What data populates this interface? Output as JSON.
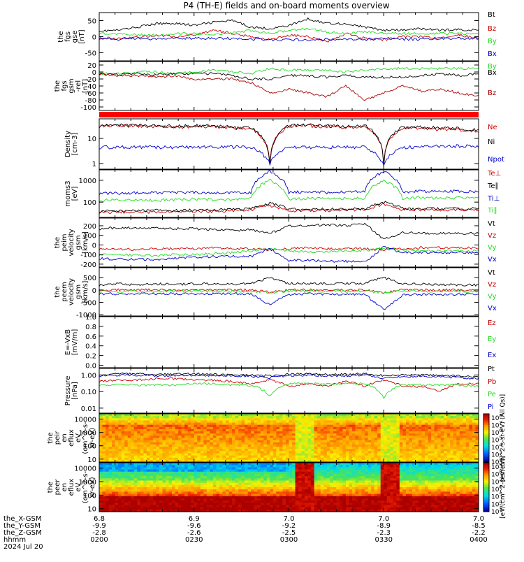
{
  "title": "P4 (TH-E) fields and on-board moments overview",
  "chart_data": [
    {
      "type": "line",
      "ylabel": [
        "the",
        "fgs",
        "gse",
        "[nT]"
      ],
      "y_ticks": [
        "50",
        "0",
        "-50"
      ],
      "ylim": [
        -75,
        75
      ],
      "y_tick_values": [
        50,
        0,
        -50
      ],
      "series": [
        {
          "name": "Bt",
          "color": "#000000",
          "values": [
            18,
            20,
            30,
            40,
            42,
            35,
            45,
            50,
            30,
            25,
            35,
            55,
            42,
            40,
            30,
            20,
            20,
            25,
            20,
            22,
            20
          ]
        },
        {
          "name": "Bz",
          "color": "#cc0000",
          "values": [
            -5,
            -5,
            -2,
            5,
            0,
            5,
            20,
            10,
            0,
            -10,
            5,
            0,
            -15,
            10,
            -5,
            -10,
            0,
            0,
            -5,
            5,
            -5
          ]
        },
        {
          "name": "By",
          "color": "#22dd22",
          "values": [
            10,
            8,
            6,
            5,
            10,
            10,
            5,
            10,
            20,
            10,
            20,
            25,
            15,
            10,
            15,
            10,
            10,
            10,
            10,
            10,
            8
          ]
        },
        {
          "name": "Bx",
          "color": "#0000cc",
          "values": [
            -5,
            -8,
            -5,
            -8,
            -5,
            -5,
            -5,
            -5,
            -8,
            -10,
            -10,
            -10,
            -8,
            -8,
            -10,
            -5,
            -8,
            -8,
            -5,
            -5,
            -5
          ]
        }
      ]
    },
    {
      "type": "line",
      "ylabel": [
        "the",
        "fgs",
        "gsm",
        "-rel",
        "[nT]"
      ],
      "y_ticks": [
        "20",
        "0",
        "-20",
        "-40",
        "-60",
        "-80",
        "-100"
      ],
      "ylim": [
        -110,
        30
      ],
      "y_tick_values": [
        20,
        0,
        -20,
        -40,
        -60,
        -80,
        -100
      ],
      "series": [
        {
          "name": "By",
          "color": "#22dd22",
          "values": [
            -5,
            -5,
            0,
            0,
            -5,
            0,
            5,
            0,
            -5,
            10,
            5,
            5,
            5,
            0,
            5,
            10,
            10,
            10,
            10,
            10,
            10
          ]
        },
        {
          "name": "Bx",
          "color": "#000000",
          "values": [
            -5,
            -8,
            -5,
            -8,
            -5,
            -5,
            -5,
            -10,
            -20,
            -20,
            -10,
            -10,
            -15,
            -10,
            -15,
            -15,
            -15,
            -10,
            -5,
            -10,
            -5
          ]
        },
        {
          "name": "Bz",
          "color": "#aa0000",
          "values": [
            -5,
            -10,
            -10,
            -15,
            -10,
            -20,
            -20,
            -20,
            -30,
            -60,
            -50,
            -60,
            -70,
            -40,
            -80,
            -60,
            -40,
            -55,
            -50,
            -60,
            -70
          ]
        }
      ]
    },
    {
      "type": "line",
      "ylabel": [
        "Density",
        "[cm-3]"
      ],
      "y_ticks": [
        "10",
        "1"
      ],
      "log": true,
      "ylim": [
        0.6,
        60
      ],
      "y_tick_values": [
        10,
        1
      ],
      "series": [
        {
          "name": "Ne",
          "color": "#cc0000",
          "values": [
            30,
            32,
            32,
            30,
            28,
            30,
            30,
            26,
            24,
            1.3,
            30,
            32,
            30,
            28,
            30,
            1.0,
            26,
            25,
            24,
            22,
            20
          ]
        },
        {
          "name": "Ni",
          "color": "#000000",
          "values": [
            32,
            34,
            34,
            32,
            30,
            32,
            32,
            28,
            26,
            1.0,
            32,
            34,
            32,
            30,
            32,
            0.9,
            28,
            28,
            26,
            25,
            22
          ]
        },
        {
          "name": "Npot",
          "color": "#0000cc",
          "values": [
            4.5,
            4.5,
            4.5,
            4.5,
            4.5,
            4.5,
            4.5,
            4.5,
            4.5,
            1.0,
            4.5,
            4.5,
            4.5,
            4.5,
            4.5,
            0.9,
            4.5,
            4.5,
            5.0,
            5.0,
            5.0
          ]
        }
      ]
    },
    {
      "type": "line",
      "ylabel": [
        "moms3",
        "[eV]"
      ],
      "y_ticks": [
        "1000",
        "100"
      ],
      "log": true,
      "ylim": [
        20,
        3000
      ],
      "y_tick_values": [
        1000,
        100
      ],
      "series": [
        {
          "name": "Te⊥",
          "color": "#cc0000",
          "values": [
            35,
            35,
            35,
            35,
            38,
            38,
            38,
            40,
            45,
            70,
            42,
            40,
            42,
            42,
            45,
            80,
            45,
            45,
            45,
            45,
            45
          ]
        },
        {
          "name": "Te∥",
          "color": "#000000",
          "values": [
            40,
            40,
            40,
            42,
            42,
            44,
            44,
            46,
            50,
            90,
            48,
            46,
            48,
            48,
            50,
            100,
            50,
            50,
            50,
            50,
            50
          ]
        },
        {
          "name": "Ti⊥",
          "color": "#0000cc",
          "values": [
            250,
            260,
            270,
            280,
            270,
            280,
            270,
            260,
            280,
            2500,
            280,
            300,
            280,
            290,
            300,
            2500,
            300,
            320,
            300,
            320,
            300
          ]
        },
        {
          "name": "Ti∥",
          "color": "#22dd22",
          "values": [
            120,
            130,
            130,
            120,
            130,
            140,
            130,
            130,
            150,
            1000,
            140,
            150,
            140,
            150,
            150,
            1000,
            150,
            160,
            150,
            160,
            150
          ]
        }
      ]
    },
    {
      "type": "line",
      "ylabel": [
        "the",
        "peim",
        "velocity",
        "gsm",
        "[km/s]"
      ],
      "y_ticks": [
        "200",
        "100",
        "0",
        "-100",
        "-200"
      ],
      "ylim": [
        -230,
        280
      ],
      "y_tick_values": [
        200,
        100,
        0,
        -100,
        -200
      ],
      "series": [
        {
          "name": "Vt",
          "color": "#000000",
          "values": [
            170,
            180,
            180,
            175,
            170,
            170,
            160,
            150,
            160,
            120,
            200,
            200,
            210,
            200,
            220,
            60,
            130,
            120,
            120,
            120,
            120
          ]
        },
        {
          "name": "Vz",
          "color": "#cc0000",
          "values": [
            -40,
            -40,
            -50,
            -40,
            -40,
            -40,
            -30,
            -40,
            -40,
            -50,
            -40,
            -30,
            -40,
            -40,
            -40,
            -50,
            -40,
            -30,
            -30,
            -30,
            -30
          ]
        },
        {
          "name": "Vy",
          "color": "#22dd22",
          "values": [
            -100,
            -100,
            -110,
            -110,
            -100,
            -100,
            -90,
            -80,
            -60,
            -40,
            -60,
            -70,
            -70,
            -60,
            -60,
            -30,
            -60,
            -60,
            -60,
            -60,
            -60
          ]
        },
        {
          "name": "Vx",
          "color": "#0000cc",
          "values": [
            -140,
            -150,
            -150,
            -150,
            -140,
            -130,
            -120,
            -120,
            -120,
            -40,
            -160,
            -160,
            -170,
            -170,
            -180,
            -20,
            -80,
            -80,
            -80,
            -80,
            -80
          ]
        }
      ]
    },
    {
      "type": "line",
      "ylabel": [
        "the",
        "peem",
        "velocity",
        "gsm",
        "[km/s]"
      ],
      "y_ticks": [
        "500",
        "0",
        "-500",
        "-1000"
      ],
      "ylim": [
        -1050,
        900
      ],
      "y_tick_values": [
        500,
        0,
        -500,
        -1000
      ],
      "series": [
        {
          "name": "Vt",
          "color": "#000000",
          "values": [
            200,
            250,
            220,
            250,
            230,
            250,
            240,
            230,
            260,
            500,
            260,
            250,
            260,
            270,
            280,
            500,
            250,
            240,
            220,
            200,
            200
          ]
        },
        {
          "name": "Vz",
          "color": "#cc0000",
          "values": [
            0,
            10,
            0,
            20,
            0,
            10,
            0,
            0,
            10,
            -100,
            0,
            10,
            0,
            0,
            0,
            -100,
            0,
            0,
            0,
            0,
            0
          ]
        },
        {
          "name": "Vy",
          "color": "#22dd22",
          "values": [
            -50,
            -60,
            -50,
            -60,
            -50,
            -60,
            -50,
            -60,
            -50,
            -100,
            -50,
            -60,
            -50,
            -60,
            -50,
            -100,
            -50,
            -50,
            -50,
            -50,
            -50
          ]
        },
        {
          "name": "Vx",
          "color": "#0000cc",
          "values": [
            -150,
            -160,
            -150,
            -160,
            -150,
            -160,
            -150,
            -160,
            -170,
            -600,
            -170,
            -160,
            -180,
            -170,
            -180,
            -800,
            -200,
            -180,
            -170,
            -170,
            -160
          ]
        }
      ]
    },
    {
      "type": "line",
      "ylabel": [
        "E=-VxB",
        "[mV/m]"
      ],
      "y_ticks": [
        "1.0",
        "0.8",
        "0.6",
        "0.4",
        "0.2",
        "0.0"
      ],
      "ylim": [
        -0.05,
        1.0
      ],
      "y_tick_values": [
        1.0,
        0.8,
        0.6,
        0.4,
        0.2,
        0.0
      ],
      "series": [
        {
          "name": "Ez",
          "color": "#cc0000",
          "values": []
        },
        {
          "name": "Ey",
          "color": "#22dd22",
          "values": []
        },
        {
          "name": "Ex",
          "color": "#0000cc",
          "values": []
        }
      ]
    },
    {
      "type": "line",
      "ylabel": [
        "Pressure",
        "[nPa]"
      ],
      "y_ticks": [
        "1.00",
        "0.10",
        "0.01"
      ],
      "log": true,
      "ylim": [
        0.005,
        2.5
      ],
      "y_tick_values": [
        1.0,
        0.1,
        0.01
      ],
      "series": [
        {
          "name": "Pt",
          "color": "#000000",
          "values": [
            1.1,
            1.2,
            1.2,
            1.1,
            1.1,
            1.2,
            1.1,
            1.0,
            1.0,
            0.9,
            1.1,
            1.2,
            1.1,
            1.1,
            1.2,
            0.9,
            1.0,
            1.0,
            0.9,
            0.9,
            0.8
          ]
        },
        {
          "name": "Pb",
          "color": "#cc0000",
          "values": [
            0.4,
            0.5,
            0.5,
            0.6,
            0.6,
            0.5,
            0.5,
            0.4,
            0.3,
            0.5,
            0.2,
            0.3,
            0.2,
            0.4,
            0.2,
            0.5,
            0.2,
            0.2,
            0.1,
            0.3,
            0.3
          ]
        },
        {
          "name": "Pe",
          "color": "#22dd22",
          "values": [
            0.25,
            0.25,
            0.25,
            0.25,
            0.25,
            0.3,
            0.3,
            0.25,
            0.25,
            0.05,
            0.3,
            0.3,
            0.3,
            0.3,
            0.3,
            0.04,
            0.25,
            0.25,
            0.25,
            0.25,
            0.2
          ]
        },
        {
          "name": "Pi",
          "color": "#0000cc",
          "values": [
            0.9,
            1.0,
            1.0,
            0.9,
            0.9,
            1.0,
            0.9,
            0.9,
            0.8,
            0.7,
            0.9,
            1.0,
            0.9,
            0.9,
            1.0,
            0.6,
            0.8,
            0.8,
            0.8,
            0.7,
            0.6
          ]
        }
      ]
    },
    {
      "type": "heatmap",
      "ylabel": [
        "the",
        "peir",
        "en",
        "eflux",
        "eV",
        "(cm^2-s-",
        "sr-eV)"
      ],
      "y_ticks": [
        "10000",
        "1000",
        "100",
        "10"
      ],
      "log": true,
      "ylim": [
        6,
        25000
      ],
      "y_tick_values": [
        10000,
        1000,
        100,
        10
      ],
      "colorbar_ticks": [
        "10^8",
        "10^7",
        "10^6",
        "10^5",
        "10^4",
        "10^3",
        "10^2"
      ],
      "colorbar_label": "[eV/(cm^2-s-sr-eV) (All Qs)]"
    },
    {
      "type": "heatmap",
      "ylabel": [
        "the",
        "peer",
        "en",
        "eflux",
        "eV",
        "(cm^2-s-",
        "sr-eV)"
      ],
      "y_ticks": [
        "10000",
        "1000",
        "100",
        "10"
      ],
      "log": true,
      "ylim": [
        6,
        25000
      ],
      "y_tick_values": [
        10000,
        1000,
        100,
        10
      ],
      "colorbar_ticks": [
        "10^9",
        "10^8",
        "10^7",
        "10^6",
        "10^5",
        "10^4",
        "10^3"
      ],
      "colorbar_label": "[eV/(cm^2-s-sr-eV)]"
    }
  ],
  "x_axis": {
    "row_labels": [
      "the_X-GSM",
      "the_Y-GSM",
      "the_Z-GSM",
      "hhmm",
      "2024 Jul 20"
    ],
    "columns": [
      [
        "6.8",
        "-9.9",
        "-2.8",
        "0200"
      ],
      [
        "6.9",
        "-9.6",
        "-2.6",
        "0230"
      ],
      [
        "7.0",
        "-9.2",
        "-2.5",
        "0300"
      ],
      [
        "7.0",
        "-8.9",
        "-2.3",
        "0330"
      ],
      [
        "7.0",
        "-8.5",
        "-2.2",
        "0400"
      ]
    ]
  }
}
